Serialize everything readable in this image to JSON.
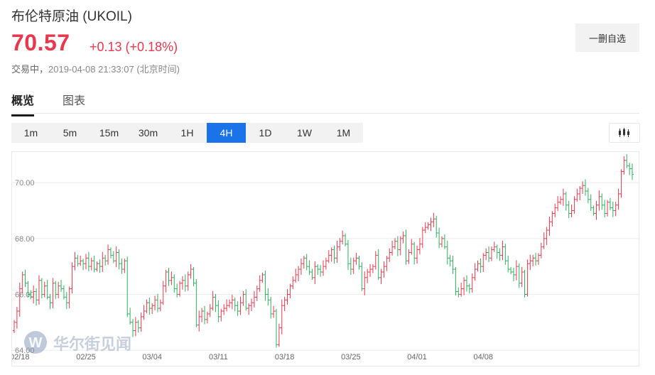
{
  "header": {
    "title": "布伦特原油 (UKOIL)",
    "price": "70.57",
    "change": "+0.13 (+0.18%)",
    "status_label": "交易中，",
    "timestamp": "2019-04-08 21:33:07 (北京时间)",
    "watchlist_button": "一删自选"
  },
  "tabs": [
    {
      "label": "概览",
      "active": true
    },
    {
      "label": "图表",
      "active": false
    }
  ],
  "periods": [
    {
      "label": "1m",
      "active": false
    },
    {
      "label": "5m",
      "active": false
    },
    {
      "label": "15m",
      "active": false
    },
    {
      "label": "30m",
      "active": false
    },
    {
      "label": "1H",
      "active": false
    },
    {
      "label": "4H",
      "active": true
    },
    {
      "label": "1D",
      "active": false
    },
    {
      "label": "1W",
      "active": false
    },
    {
      "label": "1M",
      "active": false
    }
  ],
  "icons": {
    "chart_type": "candlestick-icon",
    "watermark_logo": "wallstreetcn-logo-icon"
  },
  "watermark": "华尔街见闻",
  "colors": {
    "up": "#e8384e",
    "down": "#2eb05e",
    "accent": "#1a73e8"
  },
  "chart_data": {
    "type": "ohlc",
    "ylabels": [
      "70.00",
      "68.00",
      "66.00",
      "64.00"
    ],
    "yticks": [
      70,
      68,
      66,
      64
    ],
    "ylim": [
      63.9,
      71.1
    ],
    "xlabels": [
      "02/18",
      "02/25",
      "03/04",
      "03/11",
      "03/18",
      "03/25",
      "04/01",
      "04/08"
    ],
    "candles_per_label": 24,
    "closes": [
      65.0,
      65.4,
      66.2,
      66.7,
      66.4,
      66.0,
      65.9,
      66.1,
      65.8,
      66.5,
      66.0,
      66.3,
      65.9,
      65.7,
      66.4,
      66.0,
      66.3,
      66.2,
      65.9,
      65.7,
      66.2,
      67.0,
      67.3,
      67.1,
      67.2,
      67.1,
      67.3,
      67.0,
      67.2,
      66.9,
      67.1,
      67.0,
      67.3,
      67.2,
      67.6,
      67.4,
      67.2,
      67.5,
      67.1,
      66.9,
      67.2,
      65.3,
      65.0,
      64.7,
      65.0,
      64.8,
      65.2,
      65.4,
      65.7,
      65.5,
      65.6,
      65.8,
      65.5,
      65.7,
      66.3,
      66.8,
      66.5,
      66.6,
      66.2,
      66.0,
      66.4,
      66.5,
      66.3,
      66.7,
      66.9,
      66.4,
      64.9,
      65.2,
      65.4,
      65.1,
      65.3,
      65.5,
      65.9,
      65.6,
      65.2,
      65.4,
      65.5,
      65.6,
      65.7,
      65.8,
      65.6,
      65.4,
      65.7,
      66.0,
      65.5,
      65.6,
      65.7,
      65.9,
      66.2,
      66.5,
      66.7,
      66.0,
      65.8,
      65.3,
      65.4,
      64.2,
      64.8,
      65.6,
      65.8,
      66.0,
      66.3,
      66.5,
      66.7,
      66.9,
      67.1,
      67.3,
      67.0,
      66.8,
      66.6,
      67.0,
      66.9,
      66.8,
      67.0,
      67.2,
      67.4,
      67.6,
      67.3,
      67.7,
      67.9,
      68.1,
      67.8,
      67.1,
      66.9,
      67.2,
      67.3,
      67.0,
      66.2,
      66.6,
      66.8,
      66.9,
      67.0,
      67.4,
      66.6,
      66.8,
      67.0,
      67.3,
      67.5,
      67.7,
      67.9,
      67.6,
      68.0,
      68.1,
      67.2,
      67.5,
      67.8,
      67.3,
      67.6,
      67.8,
      68.3,
      68.4,
      68.5,
      68.6,
      68.7,
      68.2,
      67.8,
      68.0,
      67.7,
      67.3,
      67.2,
      66.9,
      66.1,
      66.0,
      66.2,
      66.5,
      66.3,
      66.2,
      66.6,
      66.9,
      67.1,
      67.0,
      67.4,
      67.5,
      67.3,
      67.6,
      67.7,
      67.5,
      67.4,
      67.7,
      67.2,
      66.9,
      66.8,
      66.7,
      67.0,
      66.4,
      66.8,
      66.0,
      67.1,
      67.2,
      67.3,
      67.2,
      67.4,
      67.7,
      68.0,
      68.3,
      68.6,
      68.9,
      69.1,
      69.3,
      69.4,
      69.6,
      69.2,
      68.9,
      69.0,
      69.4,
      69.6,
      69.8,
      69.9,
      69.7,
      69.4,
      69.1,
      68.9,
      69.2,
      69.5,
      69.2,
      68.9,
      69.3,
      69.1,
      69.0,
      69.2,
      69.6,
      70.4,
      70.8,
      70.6,
      70.5,
      70.3
    ]
  }
}
